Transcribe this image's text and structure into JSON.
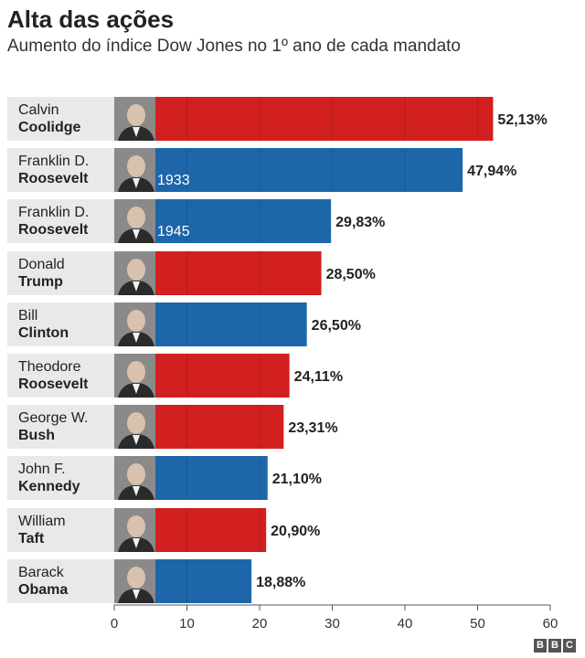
{
  "header": {
    "title": "Alta das ações",
    "subtitle": "Aumento do índice Dow Jones no 1º ano de cada mandato"
  },
  "colors": {
    "republican": "#d1201f",
    "democrat": "#1d66a9",
    "name_bg": "#e9e9e9",
    "grid": "#ffffff"
  },
  "chart_data": {
    "type": "bar",
    "orientation": "horizontal",
    "title": "Alta das ações",
    "subtitle": "Aumento do índice Dow Jones no 1º ano de cada mandato",
    "xlim": [
      0,
      60
    ],
    "xticks": [
      0,
      10,
      20,
      30,
      40,
      50,
      60
    ],
    "bars": [
      {
        "first": "Calvin",
        "last": "Coolidge",
        "value": 52.13,
        "label": "52,13%",
        "year": "",
        "party": "republican",
        "photo": "coolidge-photo"
      },
      {
        "first": "Franklin D.",
        "last": "Roosevelt",
        "value": 47.94,
        "label": "47,94%",
        "year": "1933",
        "party": "democrat",
        "photo": "fdr-1933-photo"
      },
      {
        "first": "Franklin D.",
        "last": "Roosevelt",
        "value": 29.83,
        "label": "29,83%",
        "year": "1945",
        "party": "democrat",
        "photo": "fdr-1945-photo"
      },
      {
        "first": "Donald",
        "last": "Trump",
        "value": 28.5,
        "label": "28,50%",
        "year": "",
        "party": "republican",
        "photo": "trump-photo"
      },
      {
        "first": "Bill",
        "last": "Clinton",
        "value": 26.5,
        "label": "26,50%",
        "year": "",
        "party": "democrat",
        "photo": "clinton-photo"
      },
      {
        "first": "Theodore",
        "last": "Roosevelt",
        "value": 24.11,
        "label": "24,11%",
        "year": "",
        "party": "republican",
        "photo": "teddy-roosevelt-photo"
      },
      {
        "first": "George W.",
        "last": "Bush",
        "value": 23.31,
        "label": "23,31%",
        "year": "",
        "party": "republican",
        "photo": "bush-photo"
      },
      {
        "first": "John F.",
        "last": "Kennedy",
        "value": 21.1,
        "label": "21,10%",
        "year": "",
        "party": "democrat",
        "photo": "kennedy-photo"
      },
      {
        "first": "William",
        "last": "Taft",
        "value": 20.9,
        "label": "20,90%",
        "year": "",
        "party": "republican",
        "photo": "taft-photo"
      },
      {
        "first": "Barack",
        "last": "Obama",
        "value": 18.88,
        "label": "18,88%",
        "year": "",
        "party": "democrat",
        "photo": "obama-photo"
      }
    ]
  },
  "footer": {
    "logo_letters": [
      "B",
      "B",
      "C"
    ]
  }
}
